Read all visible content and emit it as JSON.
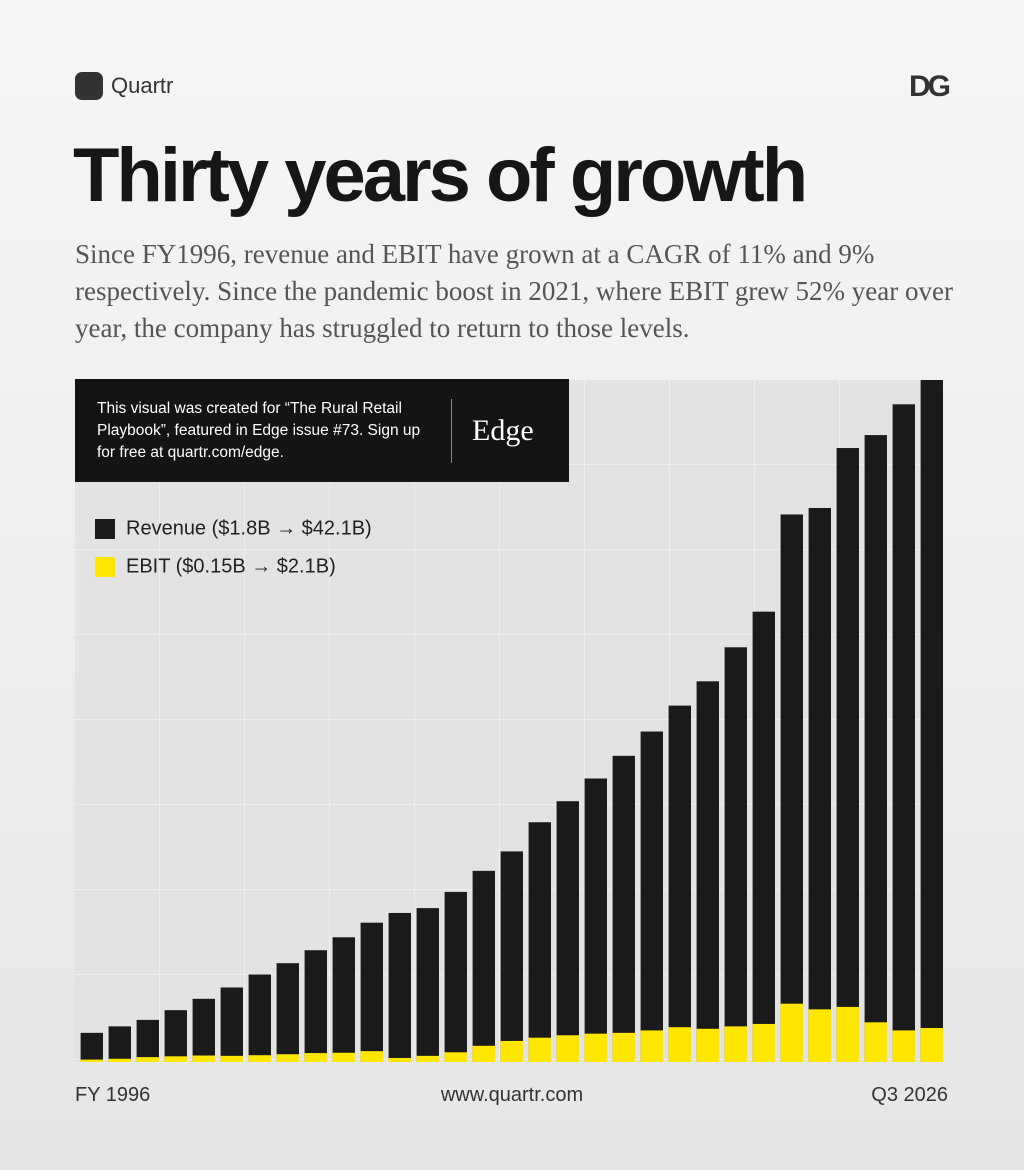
{
  "header": {
    "brand": "Quartr",
    "partner": "DG"
  },
  "note": {
    "text": "This visual was created for “The Rural Retail Playbook”, featured in Edge issue #73. Sign up for free at quartr.com/edge.",
    "logo": "Edge"
  },
  "footer": {
    "url": "www.quartr.com"
  },
  "chart_data": {
    "type": "bar",
    "mode": "overlay",
    "title": "Thirty years of growth",
    "subtitle": "Since FY1996, revenue and EBIT have grown at a CAGR of 11% and 9% respectively. Since the pandemic boost in 2021, where EBIT grew 52% year over year, the company has struggled to return to those levels.",
    "categories": [
      "FY 1996",
      null,
      null,
      null,
      null,
      null,
      null,
      null,
      null,
      null,
      null,
      null,
      null,
      null,
      null,
      null,
      null,
      null,
      null,
      null,
      null,
      null,
      null,
      null,
      null,
      null,
      null,
      null,
      null,
      null,
      "Q3 2026"
    ],
    "ylim": [
      0,
      42.1
    ],
    "series": [
      {
        "name": "Revenue ($1.8B → $42.1B)",
        "color": "#1a1a1a",
        "values": [
          1.8,
          2.2,
          2.6,
          3.2,
          3.9,
          4.6,
          5.4,
          6.1,
          6.9,
          7.7,
          8.6,
          9.2,
          9.5,
          10.5,
          11.8,
          13.0,
          14.8,
          16.1,
          17.5,
          18.9,
          20.4,
          22.0,
          23.5,
          25.6,
          27.8,
          33.8,
          34.2,
          37.9,
          38.7,
          40.6,
          42.1
        ]
      },
      {
        "name": "EBIT ($0.15B → $2.1B)",
        "color": "#ffe600",
        "values": [
          0.15,
          0.2,
          0.3,
          0.35,
          0.4,
          0.38,
          0.42,
          0.48,
          0.55,
          0.57,
          0.67,
          0.25,
          0.38,
          0.6,
          1.0,
          1.3,
          1.5,
          1.65,
          1.75,
          1.8,
          1.95,
          2.15,
          2.05,
          2.2,
          2.35,
          3.6,
          3.25,
          3.4,
          2.45,
          1.95,
          2.1
        ]
      }
    ]
  }
}
